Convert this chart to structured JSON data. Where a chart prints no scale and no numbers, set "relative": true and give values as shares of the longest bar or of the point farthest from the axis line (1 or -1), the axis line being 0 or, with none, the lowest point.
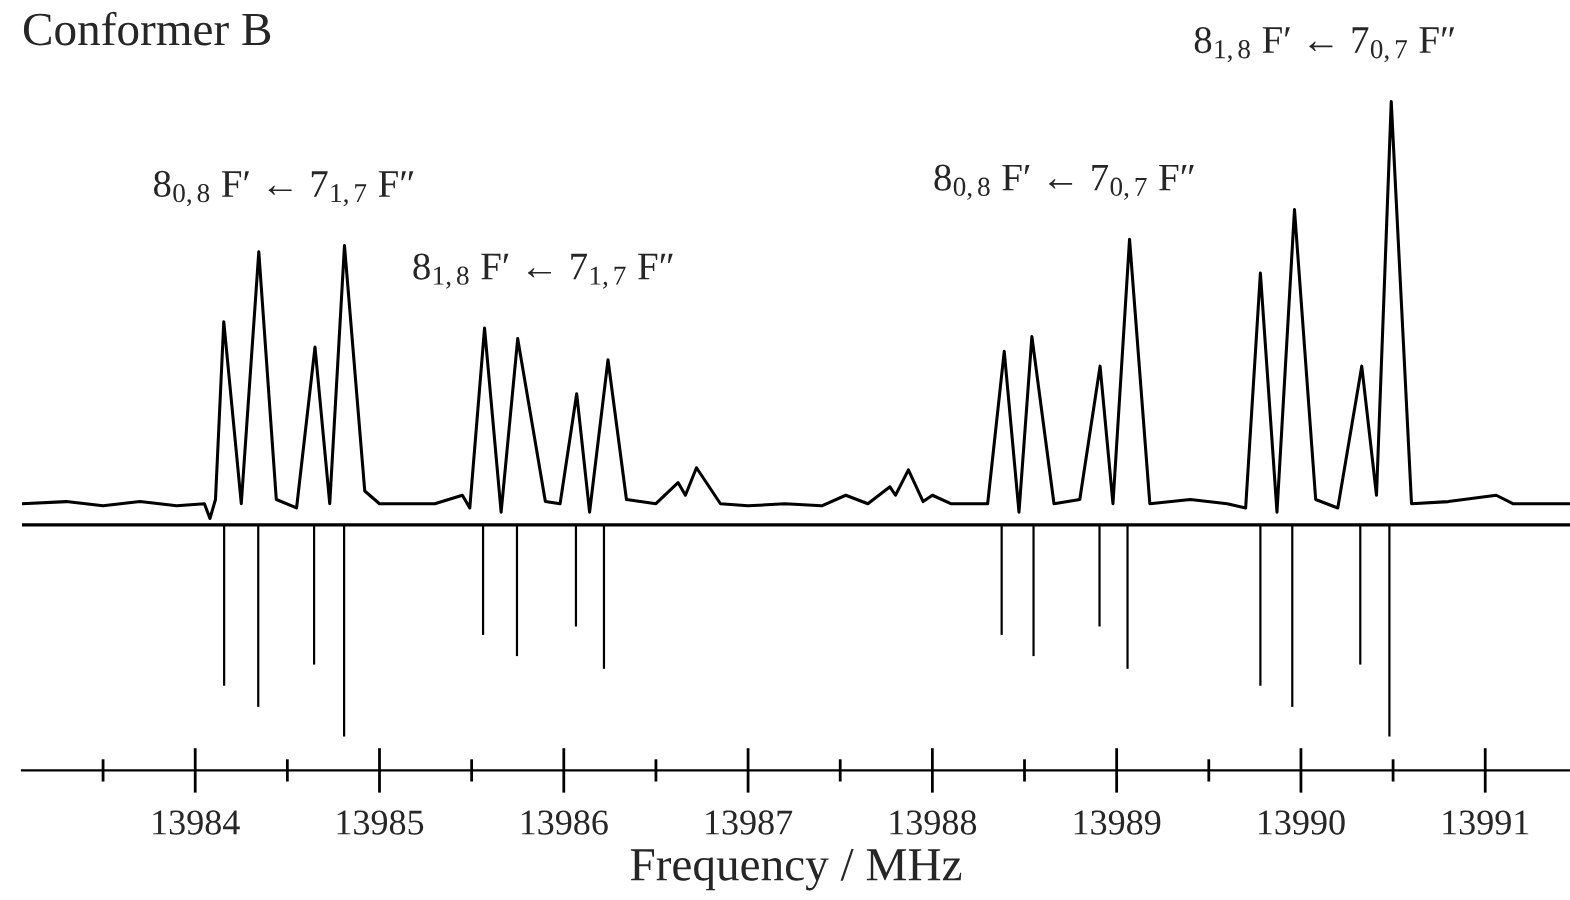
{
  "chart_data": {
    "type": "line",
    "title": "Conformer B",
    "xlabel": "Frequency / MHz",
    "relative": true,
    "xlim": [
      13983.06,
      13991.46
    ],
    "xticks": [
      {
        "value": 13983.5,
        "label": null
      },
      13984,
      {
        "value": 13984.5,
        "label": null
      },
      13985,
      {
        "value": 13985.5,
        "label": null
      },
      13986,
      {
        "value": 13986.5,
        "label": null
      },
      13987,
      {
        "value": 13987.5,
        "label": null
      },
      13988,
      {
        "value": 13988.5,
        "label": null
      },
      13989,
      {
        "value": 13989.5,
        "label": null
      },
      13990,
      {
        "value": 13990.5,
        "label": null
      },
      13991
    ],
    "series": [
      {
        "color": "#000000",
        "x": [
          13983.06,
          13983.3,
          13983.5,
          13983.7,
          13983.9,
          13984.05,
          13984.08,
          13984.11,
          13984.155,
          13984.25,
          13984.345,
          13984.44,
          13984.55,
          13984.65,
          13984.73,
          13984.81,
          13984.92,
          13985.0,
          13985.3,
          13985.45,
          13985.49,
          13985.57,
          13985.66,
          13985.75,
          13985.9,
          13985.98,
          13986.07,
          13986.14,
          13986.24,
          13986.34,
          13986.5,
          13986.62,
          13986.66,
          13986.72,
          13986.85,
          13987.0,
          13987.2,
          13987.4,
          13987.53,
          13987.65,
          13987.77,
          13987.8,
          13987.87,
          13987.95,
          13988.0,
          13988.1,
          13988.3,
          13988.39,
          13988.47,
          13988.54,
          13988.66,
          13988.8,
          13988.91,
          13988.98,
          13989.07,
          13989.18,
          13989.4,
          13989.6,
          13989.7,
          13989.78,
          13989.87,
          13989.965,
          13990.08,
          13990.2,
          13990.33,
          13990.41,
          13990.49,
          13990.6,
          13990.8,
          13991.06,
          13991.15,
          13991.46
        ],
        "values": [
          0.05,
          0.055,
          0.045,
          0.055,
          0.045,
          0.05,
          0.015,
          0.06,
          0.48,
          0.05,
          0.645,
          0.06,
          0.04,
          0.42,
          0.05,
          0.66,
          0.08,
          0.05,
          0.05,
          0.07,
          0.04,
          0.465,
          0.03,
          0.44,
          0.055,
          0.05,
          0.31,
          0.03,
          0.39,
          0.06,
          0.05,
          0.1,
          0.07,
          0.135,
          0.05,
          0.045,
          0.05,
          0.045,
          0.07,
          0.05,
          0.09,
          0.07,
          0.13,
          0.055,
          0.07,
          0.05,
          0.05,
          0.41,
          0.03,
          0.445,
          0.05,
          0.06,
          0.375,
          0.05,
          0.675,
          0.05,
          0.06,
          0.05,
          0.04,
          0.595,
          0.03,
          0.745,
          0.06,
          0.04,
          0.375,
          0.07,
          1.0,
          0.05,
          0.055,
          0.07,
          0.05,
          0.05
        ]
      },
      {
        "type": "bar",
        "color": "#000000",
        "x": [
          13984.157,
          13984.342,
          13984.645,
          13984.808,
          13985.562,
          13985.746,
          13986.066,
          13986.218,
          13988.376,
          13988.549,
          13988.907,
          13989.059,
          13989.78,
          13989.953,
          13990.322,
          13990.48
        ],
        "values": [
          -0.38,
          -0.43,
          -0.33,
          -0.5,
          -0.26,
          -0.31,
          -0.24,
          -0.34,
          -0.26,
          -0.31,
          -0.24,
          -0.34,
          -0.38,
          -0.43,
          -0.33,
          -0.5
        ]
      }
    ],
    "annotations": [
      "8$_{0,8}$ F′ ← 7$_{1,7}$ F″",
      "8$_{1,8}$ F′ ← 7$_{1,7}$ F″",
      "8$_{0,8}$ F′ ← 7$_{0,7}$ F″",
      "8$_{1,8}$ F′ ← 7$_{0,7}$ F″"
    ]
  }
}
